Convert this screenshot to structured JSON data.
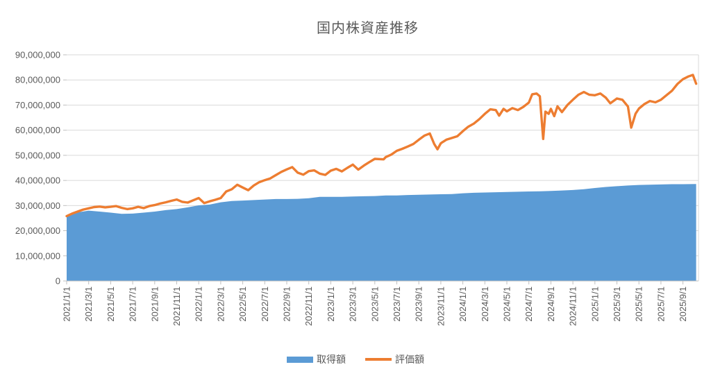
{
  "chart_data": {
    "type": "area",
    "title": "国内株資産推移",
    "xlabel": "",
    "ylabel": "",
    "ylim": [
      0,
      90000000
    ],
    "y_tick_step": 10000000,
    "y_tick_labels": [
      "0",
      "10,000,000",
      "20,000,000",
      "30,000,000",
      "40,000,000",
      "50,000,000",
      "60,000,000",
      "70,000,000",
      "80,000,000",
      "90,000,000"
    ],
    "x_tick_labels": [
      "2021/1/1",
      "2021/3/1",
      "2021/5/1",
      "2021/7/1",
      "2021/9/1",
      "2021/11/1",
      "2022/1/1",
      "2022/3/1",
      "2022/5/1",
      "2022/7/1",
      "2022/9/1",
      "2022/11/1",
      "2023/1/1",
      "2023/3/1",
      "2023/5/1",
      "2023/7/1",
      "2023/9/1",
      "2023/11/1",
      "2024/1/1",
      "2024/3/1",
      "2024/5/1",
      "2024/7/1",
      "2024/9/1",
      "2024/11/1",
      "2025/1/1",
      "2025/3/1",
      "2025/5/1",
      "2025/7/1",
      "2025/9/1"
    ],
    "x_tick_interval_months": 2,
    "x_unit": "months_from_2021/1/1",
    "x_range_months": [
      0,
      57.2
    ],
    "grid": "horizontal",
    "legend_position": "bottom",
    "colors": {
      "grid": "#d9d9d9",
      "axis": "#bfbfbf",
      "text": "#595959"
    },
    "series": [
      {
        "name": "取得額",
        "type": "area",
        "color": "#5b9bd5",
        "points": [
          [
            0,
            25600000
          ],
          [
            1,
            27300000
          ],
          [
            2,
            28000000
          ],
          [
            3,
            27600000
          ],
          [
            4,
            27200000
          ],
          [
            5,
            26700000
          ],
          [
            6,
            26800000
          ],
          [
            7,
            27200000
          ],
          [
            8,
            27600000
          ],
          [
            9,
            28200000
          ],
          [
            10,
            28600000
          ],
          [
            11,
            29300000
          ],
          [
            12,
            30100000
          ],
          [
            13,
            30400000
          ],
          [
            14,
            31300000
          ],
          [
            15,
            31800000
          ],
          [
            16,
            32000000
          ],
          [
            17,
            32200000
          ],
          [
            18,
            32400000
          ],
          [
            19,
            32600000
          ],
          [
            20,
            32600000
          ],
          [
            21,
            32700000
          ],
          [
            22,
            32900000
          ],
          [
            23,
            33500000
          ],
          [
            24,
            33500000
          ],
          [
            25,
            33500000
          ],
          [
            26,
            33600000
          ],
          [
            27,
            33700000
          ],
          [
            28,
            33800000
          ],
          [
            29,
            34000000
          ],
          [
            30,
            34000000
          ],
          [
            31,
            34200000
          ],
          [
            32,
            34300000
          ],
          [
            33,
            34400000
          ],
          [
            34,
            34500000
          ],
          [
            35,
            34600000
          ],
          [
            36,
            34900000
          ],
          [
            37,
            35100000
          ],
          [
            38,
            35200000
          ],
          [
            39,
            35300000
          ],
          [
            40,
            35400000
          ],
          [
            41,
            35500000
          ],
          [
            42,
            35600000
          ],
          [
            43,
            35700000
          ],
          [
            44,
            35800000
          ],
          [
            45,
            36000000
          ],
          [
            46,
            36200000
          ],
          [
            47,
            36500000
          ],
          [
            48,
            37000000
          ],
          [
            49,
            37400000
          ],
          [
            50,
            37700000
          ],
          [
            51,
            38000000
          ],
          [
            52,
            38200000
          ],
          [
            53,
            38300000
          ],
          [
            54,
            38400000
          ],
          [
            55,
            38500000
          ],
          [
            56,
            38500000
          ],
          [
            57.2,
            38600000
          ]
        ]
      },
      {
        "name": "評価額",
        "type": "line",
        "color": "#ed7d31",
        "points": [
          [
            0,
            25800000
          ],
          [
            0.5,
            26800000
          ],
          [
            1,
            27600000
          ],
          [
            1.5,
            28400000
          ],
          [
            2,
            28900000
          ],
          [
            2.5,
            29400000
          ],
          [
            3,
            29600000
          ],
          [
            3.5,
            29300000
          ],
          [
            4,
            29500000
          ],
          [
            4.5,
            29800000
          ],
          [
            5,
            29100000
          ],
          [
            5.5,
            28600000
          ],
          [
            6,
            28900000
          ],
          [
            6.5,
            29500000
          ],
          [
            7,
            29000000
          ],
          [
            7.5,
            29800000
          ],
          [
            8,
            30200000
          ],
          [
            8.5,
            30800000
          ],
          [
            9,
            31300000
          ],
          [
            9.5,
            31900000
          ],
          [
            10,
            32400000
          ],
          [
            10.5,
            31500000
          ],
          [
            11,
            31200000
          ],
          [
            11.5,
            32100000
          ],
          [
            12,
            33000000
          ],
          [
            12.5,
            31000000
          ],
          [
            13,
            31700000
          ],
          [
            13.5,
            32300000
          ],
          [
            14,
            33000000
          ],
          [
            14.5,
            35600000
          ],
          [
            15,
            36500000
          ],
          [
            15.5,
            38300000
          ],
          [
            16,
            37200000
          ],
          [
            16.5,
            36100000
          ],
          [
            17,
            38000000
          ],
          [
            17.5,
            39300000
          ],
          [
            18,
            40100000
          ],
          [
            18.5,
            40800000
          ],
          [
            19,
            42100000
          ],
          [
            19.5,
            43400000
          ],
          [
            20,
            44400000
          ],
          [
            20.5,
            45300000
          ],
          [
            21,
            43100000
          ],
          [
            21.5,
            42300000
          ],
          [
            22,
            43700000
          ],
          [
            22.5,
            44000000
          ],
          [
            23,
            42700000
          ],
          [
            23.5,
            42200000
          ],
          [
            24,
            43900000
          ],
          [
            24.5,
            44600000
          ],
          [
            25,
            43600000
          ],
          [
            25.5,
            45000000
          ],
          [
            26,
            46300000
          ],
          [
            26.5,
            44300000
          ],
          [
            27,
            45900000
          ],
          [
            27.5,
            47300000
          ],
          [
            28,
            48600000
          ],
          [
            28.8,
            48400000
          ],
          [
            29,
            49300000
          ],
          [
            29.5,
            50300000
          ],
          [
            30,
            51800000
          ],
          [
            30.5,
            52600000
          ],
          [
            31,
            53500000
          ],
          [
            31.5,
            54500000
          ],
          [
            32,
            56200000
          ],
          [
            32.5,
            57800000
          ],
          [
            33,
            58700000
          ],
          [
            33.4,
            54500000
          ],
          [
            33.7,
            52400000
          ],
          [
            34,
            54800000
          ],
          [
            34.5,
            56200000
          ],
          [
            35,
            56900000
          ],
          [
            35.5,
            57600000
          ],
          [
            36,
            59600000
          ],
          [
            36.5,
            61400000
          ],
          [
            37,
            62600000
          ],
          [
            37.5,
            64400000
          ],
          [
            38,
            66500000
          ],
          [
            38.5,
            68300000
          ],
          [
            39,
            68000000
          ],
          [
            39.3,
            65800000
          ],
          [
            39.7,
            68500000
          ],
          [
            40,
            67500000
          ],
          [
            40.5,
            68800000
          ],
          [
            41,
            68000000
          ],
          [
            41.5,
            69300000
          ],
          [
            42,
            71000000
          ],
          [
            42.3,
            74300000
          ],
          [
            42.7,
            74600000
          ],
          [
            43,
            73500000
          ],
          [
            43.3,
            56500000
          ],
          [
            43.5,
            67400000
          ],
          [
            43.8,
            66500000
          ],
          [
            44,
            68500000
          ],
          [
            44.3,
            65600000
          ],
          [
            44.6,
            69500000
          ],
          [
            45,
            67200000
          ],
          [
            45.5,
            70000000
          ],
          [
            46,
            72100000
          ],
          [
            46.5,
            74100000
          ],
          [
            47,
            75200000
          ],
          [
            47.5,
            74100000
          ],
          [
            48,
            73900000
          ],
          [
            48.5,
            74600000
          ],
          [
            49,
            72900000
          ],
          [
            49.4,
            70700000
          ],
          [
            50,
            72600000
          ],
          [
            50.5,
            72100000
          ],
          [
            51,
            69400000
          ],
          [
            51.3,
            61000000
          ],
          [
            51.7,
            66600000
          ],
          [
            52,
            68600000
          ],
          [
            52.5,
            70400000
          ],
          [
            53,
            71600000
          ],
          [
            53.5,
            71100000
          ],
          [
            54,
            72100000
          ],
          [
            54.5,
            73900000
          ],
          [
            55,
            75700000
          ],
          [
            55.5,
            78400000
          ],
          [
            56,
            80300000
          ],
          [
            56.5,
            81400000
          ],
          [
            56.9,
            82000000
          ],
          [
            57.2,
            78500000
          ]
        ]
      }
    ]
  }
}
